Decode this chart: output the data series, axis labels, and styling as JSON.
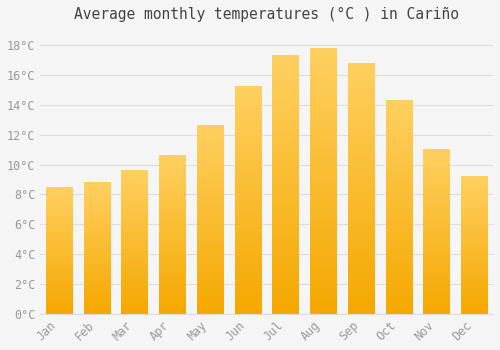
{
  "title": "Average monthly temperatures (°C ) in Cariño",
  "months": [
    "Jan",
    "Feb",
    "Mar",
    "Apr",
    "May",
    "Jun",
    "Jul",
    "Aug",
    "Sep",
    "Oct",
    "Nov",
    "Dec"
  ],
  "temperatures": [
    8.5,
    8.8,
    9.6,
    10.6,
    12.6,
    15.2,
    17.3,
    17.8,
    16.8,
    14.3,
    11.0,
    9.2
  ],
  "bar_color_light": "#FFD060",
  "bar_color_dark": "#F5A800",
  "ylim": [
    0,
    19
  ],
  "yticks": [
    0,
    2,
    4,
    6,
    8,
    10,
    12,
    14,
    16,
    18
  ],
  "background_color": "#f5f5f5",
  "plot_bg_color": "#f5f5f5",
  "grid_color": "#dddddd",
  "tick_label_color": "#999999",
  "title_color": "#444444",
  "title_fontsize": 10.5,
  "tick_fontsize": 8.5
}
